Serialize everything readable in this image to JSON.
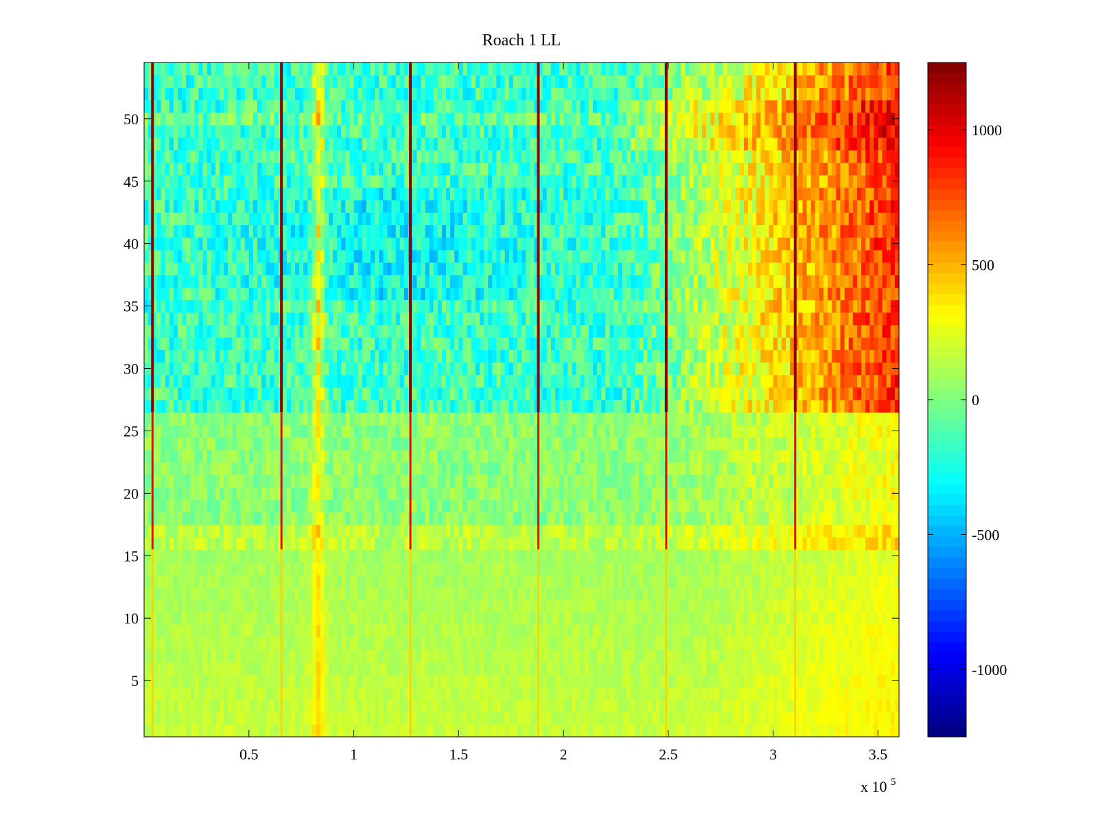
{
  "chart_data": {
    "type": "heatmap",
    "title": "Roach 1 LL",
    "xlabel": "",
    "ylabel": "",
    "x_multiplier_label": "x 10",
    "x_multiplier_exponent": "5",
    "xlim": [
      0,
      3.6
    ],
    "ylim": [
      0.5,
      54.5
    ],
    "x_ticks": [
      {
        "value": 0.5,
        "label": "0.5"
      },
      {
        "value": 1.0,
        "label": "1"
      },
      {
        "value": 1.5,
        "label": "1.5"
      },
      {
        "value": 2.0,
        "label": "2"
      },
      {
        "value": 2.5,
        "label": "2.5"
      },
      {
        "value": 3.0,
        "label": "3"
      },
      {
        "value": 3.5,
        "label": "3.5"
      }
    ],
    "y_ticks": [
      {
        "value": 5,
        "label": "5"
      },
      {
        "value": 10,
        "label": "10"
      },
      {
        "value": 15,
        "label": "15"
      },
      {
        "value": 20,
        "label": "20"
      },
      {
        "value": 25,
        "label": "25"
      },
      {
        "value": 30,
        "label": "30"
      },
      {
        "value": 35,
        "label": "35"
      },
      {
        "value": 40,
        "label": "40"
      },
      {
        "value": 45,
        "label": "45"
      },
      {
        "value": 50,
        "label": "50"
      }
    ],
    "rows": 54,
    "colorbar": {
      "colormap": "jet",
      "range": [
        -1250,
        1250
      ],
      "ticks": [
        {
          "value": 1000,
          "label": "1000"
        },
        {
          "value": 500,
          "label": "500"
        },
        {
          "value": 0,
          "label": "0"
        },
        {
          "value": -500,
          "label": "-500"
        },
        {
          "value": -1000,
          "label": "-1000"
        }
      ]
    },
    "vertical_stripes_x": [
      0.04,
      0.655,
      1.27,
      1.88,
      2.49,
      3.105
    ],
    "grid": false,
    "legend": "none"
  }
}
